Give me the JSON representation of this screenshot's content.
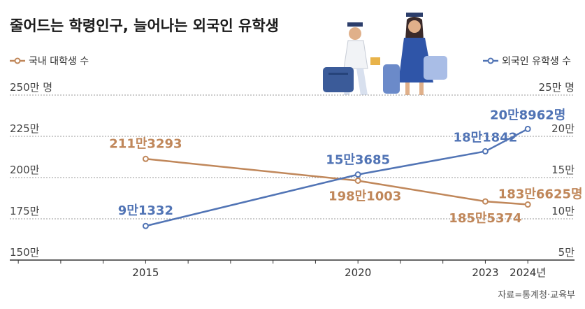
{
  "title": "줄어드는 학령인구, 늘어나는 외국인 유학생",
  "source": "자료=통계청·교육부",
  "colors": {
    "domestic": "#c0875a",
    "foreign": "#5174b5",
    "axis": "#333333",
    "grid": "#999999"
  },
  "chart_data": {
    "type": "line",
    "x": [
      2015,
      2020,
      2023,
      2024
    ],
    "xtick_labels": [
      "2015",
      "2020",
      "2023",
      "2024년"
    ],
    "left_axis": {
      "ylim": [
        150,
        250
      ],
      "ticks": [
        "150만",
        "175만",
        "200만",
        "225만",
        "250만 명"
      ]
    },
    "right_axis": {
      "ylim": [
        5,
        25
      ],
      "ticks": [
        "5만",
        "10만",
        "15만",
        "20만",
        "25만 명"
      ]
    },
    "series": [
      {
        "name": "국내 대학생 수",
        "axis": "left",
        "values": [
          211.3293,
          198.1003,
          185.5374,
          183.6625
        ],
        "labels": [
          "211만3293",
          "198만1003",
          "185만5374",
          "183만6625명"
        ]
      },
      {
        "name": "외국인 유학생 수",
        "axis": "right",
        "values": [
          9.1332,
          15.3685,
          18.1842,
          20.8962
        ],
        "labels": [
          "9만1332",
          "15만3685",
          "18만1842",
          "20만8962명"
        ]
      }
    ],
    "grid": true,
    "legend": "top"
  }
}
